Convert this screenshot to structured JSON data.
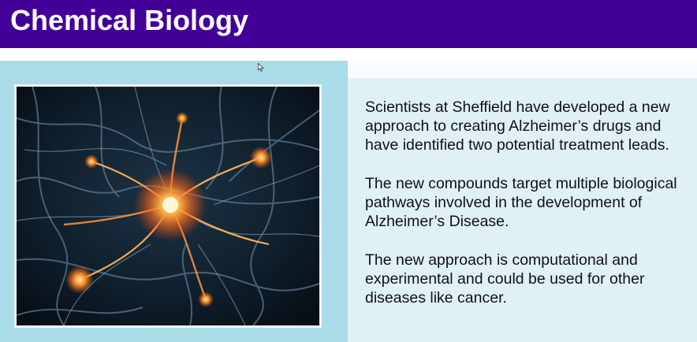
{
  "slide": {
    "title": "Chemical Biology",
    "paragraphs": [
      "Scientists at Sheffield have developed a new approach to creating Alzheimer’s drugs and have identified two potential treatment leads.",
      "The new compounds target multiple biological pathways involved in the development of Alzheimer’s Disease.",
      "The new approach is computational and experimental and could be used for other diseases like cancer."
    ],
    "image": {
      "icon": "neuron-network-image"
    }
  },
  "colors": {
    "title_bar": "#430099",
    "title_text": "#ffffff",
    "left_panel": "#a9dbe8",
    "right_panel": "#e0f1f6",
    "neuron_glow": "#ff8a2a"
  },
  "cursor": {
    "icon": "mouse-pointer-icon"
  }
}
